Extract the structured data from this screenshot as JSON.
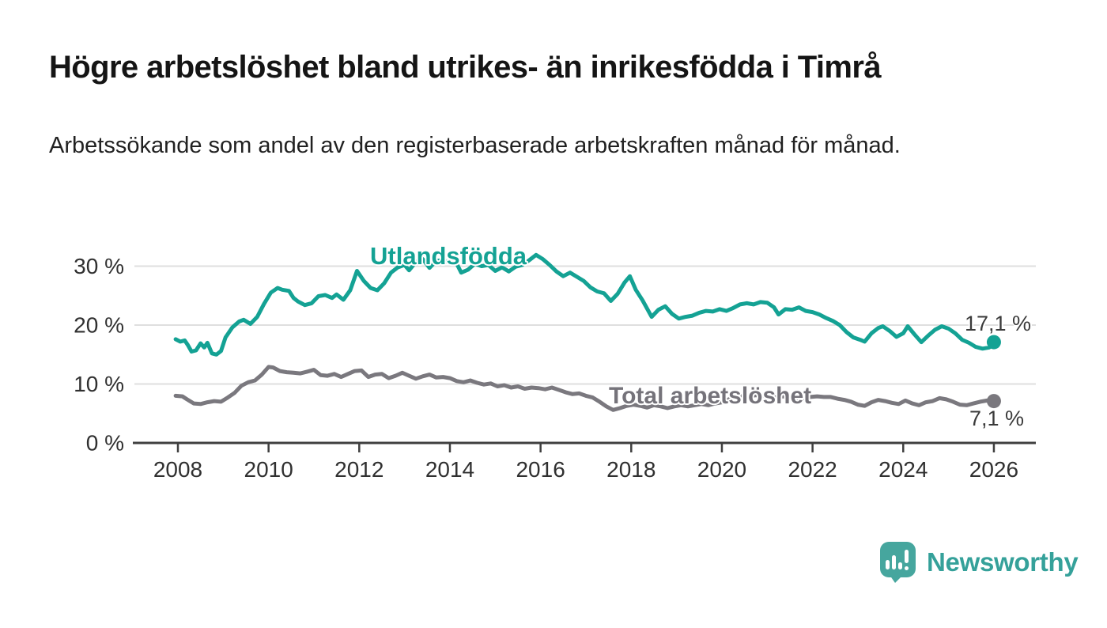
{
  "header": {
    "title": "Högre arbetslöshet bland utrikes- än inrikesfödda i Timrå",
    "subtitle": "Arbetssökande som andel av den registerbaserade arbetskraften månad för månad."
  },
  "branding": {
    "logo_text": "Newsworthy",
    "logo_icon": "bar-chart-speech-bubble-icon",
    "brand_color": "#3aa39b"
  },
  "colors": {
    "foreign_born_line": "#14a294",
    "total_line": "#7a787e",
    "gridline": "#dfdfdf",
    "axis": "#3f3f3f",
    "tick_text": "#303030",
    "end_label_text": "#3a3a3a"
  },
  "chart_data": {
    "type": "line",
    "title": "Högre arbetslöshet bland utrikes- än inrikesfödda i Timrå",
    "subtitle": "Arbetssökande som andel av den registerbaserade arbetskraften månad för månad.",
    "xlabel": "",
    "ylabel": "",
    "grid": "horizontal",
    "legend_position": "inline-labels",
    "x_axis": {
      "tick_values": [
        2008,
        2010,
        2012,
        2014,
        2016,
        2018,
        2020,
        2022,
        2024,
        2026
      ],
      "tick_labels": [
        "2008",
        "2010",
        "2012",
        "2014",
        "2016",
        "2018",
        "2020",
        "2022",
        "2024",
        "2026"
      ],
      "range": [
        2007.95,
        2026.9
      ]
    },
    "y_axis": {
      "tick_values": [
        0,
        10,
        20,
        30
      ],
      "tick_labels": [
        "0 %",
        "10 %",
        "20 %",
        "30 %"
      ],
      "range": [
        0,
        33
      ]
    },
    "series": [
      {
        "name": "Utlandsfödda",
        "color": "#14a294",
        "end_label": "17,1 %",
        "end_value": 17.1,
        "points": [
          [
            2007.95,
            17.6
          ],
          [
            2008.05,
            17.2
          ],
          [
            2008.15,
            17.4
          ],
          [
            2008.22,
            16.6
          ],
          [
            2008.3,
            15.5
          ],
          [
            2008.4,
            15.7
          ],
          [
            2008.5,
            16.9
          ],
          [
            2008.58,
            16.2
          ],
          [
            2008.65,
            17.0
          ],
          [
            2008.75,
            15.2
          ],
          [
            2008.85,
            15.0
          ],
          [
            2008.95,
            15.6
          ],
          [
            2009.05,
            17.9
          ],
          [
            2009.2,
            19.6
          ],
          [
            2009.35,
            20.6
          ],
          [
            2009.45,
            20.9
          ],
          [
            2009.6,
            20.2
          ],
          [
            2009.75,
            21.4
          ],
          [
            2009.9,
            23.6
          ],
          [
            2010.05,
            25.5
          ],
          [
            2010.2,
            26.3
          ],
          [
            2010.3,
            26.0
          ],
          [
            2010.45,
            25.8
          ],
          [
            2010.55,
            24.6
          ],
          [
            2010.65,
            24.0
          ],
          [
            2010.8,
            23.4
          ],
          [
            2010.95,
            23.7
          ],
          [
            2011.1,
            24.9
          ],
          [
            2011.25,
            25.1
          ],
          [
            2011.4,
            24.6
          ],
          [
            2011.5,
            25.2
          ],
          [
            2011.65,
            24.3
          ],
          [
            2011.8,
            25.9
          ],
          [
            2011.95,
            29.2
          ],
          [
            2012.1,
            27.5
          ],
          [
            2012.25,
            26.3
          ],
          [
            2012.4,
            25.9
          ],
          [
            2012.55,
            27.1
          ],
          [
            2012.7,
            28.9
          ],
          [
            2012.85,
            29.8
          ],
          [
            2013.0,
            30.2
          ],
          [
            2013.1,
            29.3
          ],
          [
            2013.25,
            30.7
          ],
          [
            2013.4,
            31.2
          ],
          [
            2013.55,
            29.7
          ],
          [
            2013.7,
            30.9
          ],
          [
            2013.85,
            31.0
          ],
          [
            2014.0,
            30.6
          ],
          [
            2014.1,
            31.2
          ],
          [
            2014.25,
            28.9
          ],
          [
            2014.4,
            29.4
          ],
          [
            2014.55,
            30.4
          ],
          [
            2014.7,
            30.0
          ],
          [
            2014.85,
            30.2
          ],
          [
            2015.0,
            29.2
          ],
          [
            2015.15,
            29.8
          ],
          [
            2015.3,
            29.1
          ],
          [
            2015.45,
            29.9
          ],
          [
            2015.6,
            30.2
          ],
          [
            2015.75,
            31.0
          ],
          [
            2015.9,
            31.9
          ],
          [
            2016.05,
            31.2
          ],
          [
            2016.2,
            30.2
          ],
          [
            2016.35,
            29.1
          ],
          [
            2016.5,
            28.3
          ],
          [
            2016.65,
            28.9
          ],
          [
            2016.8,
            28.2
          ],
          [
            2016.95,
            27.5
          ],
          [
            2017.1,
            26.4
          ],
          [
            2017.25,
            25.7
          ],
          [
            2017.4,
            25.4
          ],
          [
            2017.55,
            24.1
          ],
          [
            2017.7,
            25.3
          ],
          [
            2017.85,
            27.2
          ],
          [
            2017.97,
            28.3
          ],
          [
            2018.1,
            26.0
          ],
          [
            2018.25,
            24.2
          ],
          [
            2018.45,
            21.4
          ],
          [
            2018.6,
            22.6
          ],
          [
            2018.75,
            23.2
          ],
          [
            2018.9,
            21.9
          ],
          [
            2019.05,
            21.1
          ],
          [
            2019.2,
            21.4
          ],
          [
            2019.35,
            21.6
          ],
          [
            2019.5,
            22.1
          ],
          [
            2019.65,
            22.4
          ],
          [
            2019.8,
            22.3
          ],
          [
            2019.95,
            22.7
          ],
          [
            2020.1,
            22.4
          ],
          [
            2020.25,
            22.9
          ],
          [
            2020.4,
            23.5
          ],
          [
            2020.55,
            23.7
          ],
          [
            2020.7,
            23.5
          ],
          [
            2020.85,
            23.9
          ],
          [
            2021.0,
            23.8
          ],
          [
            2021.15,
            23.0
          ],
          [
            2021.25,
            21.8
          ],
          [
            2021.4,
            22.7
          ],
          [
            2021.55,
            22.6
          ],
          [
            2021.7,
            23.0
          ],
          [
            2021.85,
            22.4
          ],
          [
            2022.0,
            22.2
          ],
          [
            2022.15,
            21.8
          ],
          [
            2022.3,
            21.2
          ],
          [
            2022.45,
            20.7
          ],
          [
            2022.6,
            20.0
          ],
          [
            2022.75,
            18.8
          ],
          [
            2022.9,
            17.9
          ],
          [
            2023.05,
            17.5
          ],
          [
            2023.15,
            17.2
          ],
          [
            2023.3,
            18.6
          ],
          [
            2023.45,
            19.5
          ],
          [
            2023.55,
            19.8
          ],
          [
            2023.7,
            19.0
          ],
          [
            2023.85,
            18.0
          ],
          [
            2024.0,
            18.6
          ],
          [
            2024.1,
            19.8
          ],
          [
            2024.25,
            18.4
          ],
          [
            2024.4,
            17.1
          ],
          [
            2024.55,
            18.2
          ],
          [
            2024.7,
            19.2
          ],
          [
            2024.85,
            19.8
          ],
          [
            2025.0,
            19.4
          ],
          [
            2025.15,
            18.6
          ],
          [
            2025.3,
            17.5
          ],
          [
            2025.45,
            17.0
          ],
          [
            2025.6,
            16.3
          ],
          [
            2025.75,
            16.0
          ],
          [
            2025.9,
            16.2
          ],
          [
            2026.0,
            17.1
          ]
        ]
      },
      {
        "name": "Total arbetslöshet",
        "color": "#7a787e",
        "end_label": "7,1 %",
        "end_value": 7.1,
        "points": [
          [
            2007.95,
            8.0
          ],
          [
            2008.1,
            7.9
          ],
          [
            2008.2,
            7.4
          ],
          [
            2008.35,
            6.7
          ],
          [
            2008.5,
            6.6
          ],
          [
            2008.65,
            6.9
          ],
          [
            2008.8,
            7.1
          ],
          [
            2008.95,
            7.0
          ],
          [
            2009.1,
            7.7
          ],
          [
            2009.25,
            8.5
          ],
          [
            2009.4,
            9.7
          ],
          [
            2009.55,
            10.3
          ],
          [
            2009.7,
            10.6
          ],
          [
            2009.85,
            11.6
          ],
          [
            2010.0,
            12.9
          ],
          [
            2010.1,
            12.8
          ],
          [
            2010.25,
            12.2
          ],
          [
            2010.4,
            12.0
          ],
          [
            2010.55,
            11.9
          ],
          [
            2010.7,
            11.8
          ],
          [
            2010.85,
            12.1
          ],
          [
            2011.0,
            12.4
          ],
          [
            2011.15,
            11.5
          ],
          [
            2011.3,
            11.4
          ],
          [
            2011.45,
            11.7
          ],
          [
            2011.6,
            11.2
          ],
          [
            2011.75,
            11.7
          ],
          [
            2011.9,
            12.2
          ],
          [
            2012.05,
            12.3
          ],
          [
            2012.2,
            11.2
          ],
          [
            2012.35,
            11.6
          ],
          [
            2012.5,
            11.7
          ],
          [
            2012.65,
            11.0
          ],
          [
            2012.8,
            11.4
          ],
          [
            2012.95,
            11.9
          ],
          [
            2013.1,
            11.4
          ],
          [
            2013.25,
            10.9
          ],
          [
            2013.4,
            11.3
          ],
          [
            2013.55,
            11.6
          ],
          [
            2013.7,
            11.1
          ],
          [
            2013.85,
            11.2
          ],
          [
            2014.0,
            11.0
          ],
          [
            2014.15,
            10.5
          ],
          [
            2014.3,
            10.3
          ],
          [
            2014.45,
            10.6
          ],
          [
            2014.6,
            10.2
          ],
          [
            2014.75,
            9.9
          ],
          [
            2014.9,
            10.1
          ],
          [
            2015.05,
            9.6
          ],
          [
            2015.2,
            9.8
          ],
          [
            2015.35,
            9.4
          ],
          [
            2015.5,
            9.6
          ],
          [
            2015.65,
            9.2
          ],
          [
            2015.8,
            9.4
          ],
          [
            2015.95,
            9.3
          ],
          [
            2016.1,
            9.1
          ],
          [
            2016.25,
            9.4
          ],
          [
            2016.4,
            9.0
          ],
          [
            2016.55,
            8.6
          ],
          [
            2016.7,
            8.3
          ],
          [
            2016.85,
            8.4
          ],
          [
            2017.0,
            8.0
          ],
          [
            2017.15,
            7.7
          ],
          [
            2017.3,
            7.0
          ],
          [
            2017.45,
            6.2
          ],
          [
            2017.6,
            5.6
          ],
          [
            2017.75,
            5.9
          ],
          [
            2017.9,
            6.3
          ],
          [
            2018.05,
            6.5
          ],
          [
            2018.2,
            6.3
          ],
          [
            2018.35,
            6.0
          ],
          [
            2018.5,
            6.4
          ],
          [
            2018.65,
            6.2
          ],
          [
            2018.8,
            5.9
          ],
          [
            2018.95,
            6.2
          ],
          [
            2019.1,
            6.4
          ],
          [
            2019.25,
            6.2
          ],
          [
            2019.4,
            6.4
          ],
          [
            2019.55,
            6.6
          ],
          [
            2019.7,
            6.4
          ],
          [
            2019.85,
            6.7
          ],
          [
            2020.0,
            6.9
          ],
          [
            2020.15,
            7.4
          ],
          [
            2020.3,
            7.7
          ],
          [
            2020.45,
            8.0
          ],
          [
            2020.6,
            7.9
          ],
          [
            2020.75,
            8.1
          ],
          [
            2020.9,
            8.0
          ],
          [
            2021.05,
            7.9
          ],
          [
            2021.2,
            7.7
          ],
          [
            2021.35,
            7.9
          ],
          [
            2021.5,
            7.6
          ],
          [
            2021.65,
            7.4
          ],
          [
            2021.8,
            7.6
          ],
          [
            2021.95,
            7.8
          ],
          [
            2022.1,
            7.9
          ],
          [
            2022.25,
            7.8
          ],
          [
            2022.4,
            7.8
          ],
          [
            2022.55,
            7.5
          ],
          [
            2022.7,
            7.3
          ],
          [
            2022.85,
            7.0
          ],
          [
            2023.0,
            6.5
          ],
          [
            2023.15,
            6.3
          ],
          [
            2023.3,
            6.9
          ],
          [
            2023.45,
            7.3
          ],
          [
            2023.6,
            7.1
          ],
          [
            2023.75,
            6.8
          ],
          [
            2023.9,
            6.6
          ],
          [
            2024.05,
            7.2
          ],
          [
            2024.2,
            6.7
          ],
          [
            2024.35,
            6.4
          ],
          [
            2024.5,
            6.9
          ],
          [
            2024.65,
            7.1
          ],
          [
            2024.8,
            7.6
          ],
          [
            2024.95,
            7.4
          ],
          [
            2025.1,
            7.0
          ],
          [
            2025.25,
            6.5
          ],
          [
            2025.4,
            6.4
          ],
          [
            2025.55,
            6.7
          ],
          [
            2025.7,
            7.0
          ],
          [
            2025.85,
            7.2
          ],
          [
            2026.0,
            7.1
          ]
        ]
      }
    ]
  }
}
